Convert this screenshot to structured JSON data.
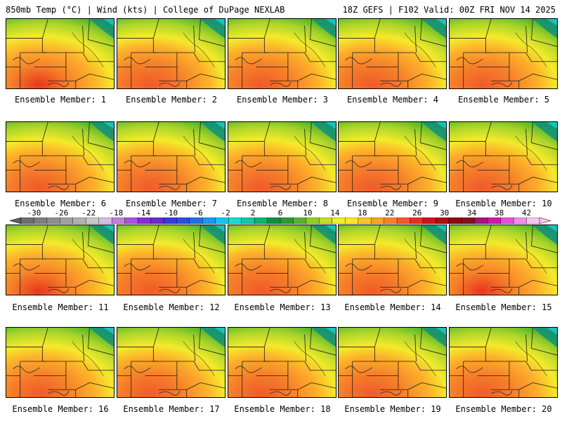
{
  "header": {
    "left": "850mb Temp (°C) | Wind (kts) | College of DuPage NEXLAB",
    "right": "18Z GEFS | F102 Valid: 00Z FRI NOV 14 2025"
  },
  "colorbar": {
    "labels": [
      "-30",
      "-26",
      "-22",
      "-18",
      "-14",
      "-10",
      "-6",
      "-2",
      "2",
      "6",
      "10",
      "14",
      "18",
      "22",
      "26",
      "30",
      "34",
      "38",
      "42"
    ],
    "colors": [
      "#6d6d6d",
      "#7f7f7f",
      "#8e8e8e",
      "#a0a0a0",
      "#b0b0b0",
      "#c8c8c8",
      "#d7bce6",
      "#c27fde",
      "#b14fd6",
      "#8c2bd0",
      "#6a2bc8",
      "#3a3ad0",
      "#2950d8",
      "#1e73e0",
      "#1b99e6",
      "#19c2ea",
      "#18d8d8",
      "#16c7a0",
      "#12b070",
      "#0f8f3c",
      "#2a9b2a",
      "#55b42a",
      "#8fcc2a",
      "#c4dd2a",
      "#ecef2a",
      "#fde42a",
      "#fdc22a",
      "#f9a02a",
      "#f6802a",
      "#f05a2a",
      "#e43020",
      "#cc1616",
      "#ab0f0f",
      "#8a0c0c",
      "#7a1818",
      "#a0167a",
      "#cc19aa",
      "#e64fdb",
      "#f08ee6",
      "#f8c4f0"
    ]
  },
  "members": [
    {
      "label": "Ensemble Member: 1",
      "hot": 0.7
    },
    {
      "label": "Ensemble Member: 2",
      "hot": 0.35
    },
    {
      "label": "Ensemble Member: 3",
      "hot": 0.5
    },
    {
      "label": "Ensemble Member: 4",
      "hot": 0.45
    },
    {
      "label": "Ensemble Member: 5",
      "hot": 0.55
    },
    {
      "label": "Ensemble Member: 6",
      "hot": 0.55
    },
    {
      "label": "Ensemble Member: 7",
      "hot": 0.45
    },
    {
      "label": "Ensemble Member: 8",
      "hot": 0.55
    },
    {
      "label": "Ensemble Member: 9",
      "hot": 0.4
    },
    {
      "label": "Ensemble Member: 10",
      "hot": 0.45
    },
    {
      "label": "Ensemble Member: 11",
      "hot": 0.65
    },
    {
      "label": "Ensemble Member: 12",
      "hot": 0.4
    },
    {
      "label": "Ensemble Member: 13",
      "hot": 0.3
    },
    {
      "label": "Ensemble Member: 14",
      "hot": 0.6
    },
    {
      "label": "Ensemble Member: 15",
      "hot": 0.65
    },
    {
      "label": "Ensemble Member: 16",
      "hot": 0.6
    },
    {
      "label": "Ensemble Member: 17",
      "hot": 0.55
    },
    {
      "label": "Ensemble Member: 18",
      "hot": 0.55
    },
    {
      "label": "Ensemble Member: 19",
      "hot": 0.5
    },
    {
      "label": "Ensemble Member: 20",
      "hot": 0.55
    }
  ]
}
